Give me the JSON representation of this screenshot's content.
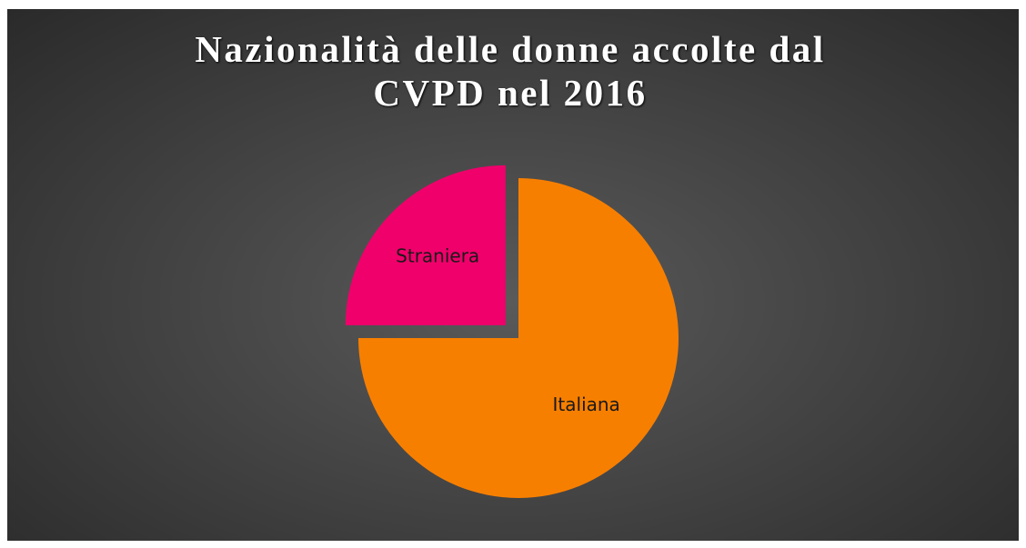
{
  "chart_data": {
    "type": "pie",
    "title": "Nazionalità delle donne accolte dal CVPD nel 2016",
    "categories": [
      "Italiana",
      "Straniera"
    ],
    "values": [
      75,
      25
    ],
    "colors": [
      "#f77f00",
      "#f0006b"
    ],
    "exploded": [
      false,
      true
    ]
  }
}
